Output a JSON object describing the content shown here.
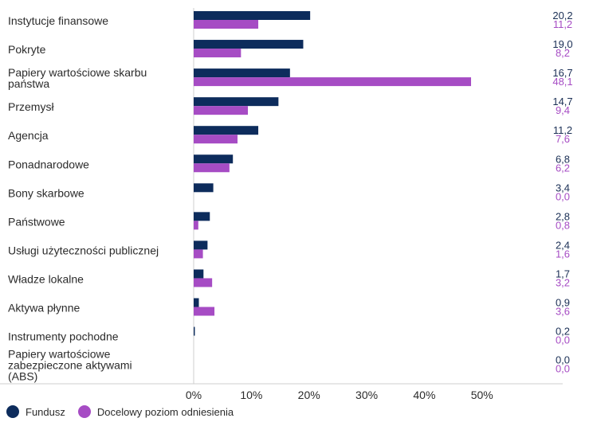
{
  "chart_data": {
    "type": "bar",
    "orientation": "horizontal",
    "categories": [
      "Instytucje finansowe",
      "Pokryte",
      "Papiery wartościowe skarbu\npaństwa",
      "Przemysł",
      "Agencja",
      "Ponadnarodowe",
      "Bony skarbowe",
      "Państwowe",
      "Usługi użyteczności publicznej",
      "Władze lokalne",
      "Aktywa płynne",
      "Instrumenty pochodne",
      "Papiery wartościowe\nzabezpieczone aktywami\n(ABS)"
    ],
    "series": [
      {
        "name": "Fundusz",
        "color": "#0d2c5c",
        "values": [
          20.2,
          19.0,
          16.7,
          14.7,
          11.2,
          6.8,
          3.4,
          2.8,
          2.4,
          1.7,
          0.9,
          0.2,
          0.0
        ]
      },
      {
        "name": "Docelowy poziom odniesienia",
        "color": "#a64cc4",
        "values": [
          11.2,
          8.2,
          48.1,
          9.4,
          7.6,
          6.2,
          0.0,
          0.8,
          1.6,
          3.2,
          3.6,
          0.0,
          0.0
        ]
      }
    ],
    "value_labels": [
      [
        "20,2",
        "11,2"
      ],
      [
        "19,0",
        "8,2"
      ],
      [
        "16,7",
        "48,1"
      ],
      [
        "14,7",
        "9,4"
      ],
      [
        "11,2",
        "7,6"
      ],
      [
        "6,8",
        "6,2"
      ],
      [
        "3,4",
        "0,0"
      ],
      [
        "2,8",
        "0,8"
      ],
      [
        "2,4",
        "1,6"
      ],
      [
        "1,7",
        "3,2"
      ],
      [
        "0,9",
        "3,6"
      ],
      [
        "0,2",
        "0,0"
      ],
      [
        "0,0",
        "0,0"
      ]
    ],
    "x_ticks": [
      "0%",
      "10%",
      "20%",
      "30%",
      "40%",
      "50%"
    ],
    "xlim": [
      0,
      50
    ],
    "grid": false,
    "legend_position": "bottom-left"
  }
}
